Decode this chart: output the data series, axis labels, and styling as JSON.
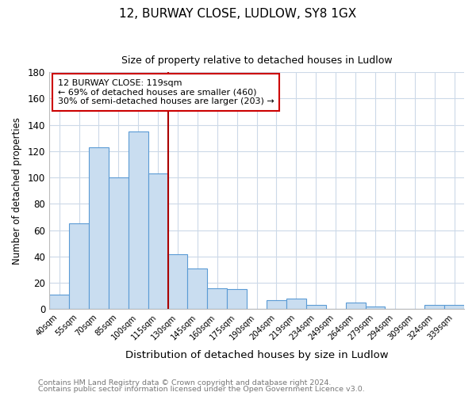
{
  "title": "12, BURWAY CLOSE, LUDLOW, SY8 1GX",
  "subtitle": "Size of property relative to detached houses in Ludlow",
  "xlabel": "Distribution of detached houses by size in Ludlow",
  "ylabel": "Number of detached properties",
  "bar_labels": [
    "40sqm",
    "55sqm",
    "70sqm",
    "85sqm",
    "100sqm",
    "115sqm",
    "130sqm",
    "145sqm",
    "160sqm",
    "175sqm",
    "190sqm",
    "204sqm",
    "219sqm",
    "234sqm",
    "249sqm",
    "264sqm",
    "279sqm",
    "294sqm",
    "309sqm",
    "324sqm",
    "339sqm"
  ],
  "bar_values": [
    11,
    65,
    123,
    100,
    135,
    103,
    42,
    31,
    16,
    15,
    0,
    7,
    8,
    3,
    0,
    5,
    2,
    0,
    0,
    3,
    3
  ],
  "bar_color": "#c9ddf0",
  "bar_edge_color": "#5b9bd5",
  "vline_x": 5.5,
  "vline_color": "#aa0000",
  "annotation_lines": [
    "12 BURWAY CLOSE: 119sqm",
    "← 69% of detached houses are smaller (460)",
    "30% of semi-detached houses are larger (203) →"
  ],
  "annotation_box_color": "#ffffff",
  "annotation_box_edge": "#cc0000",
  "ylim": [
    0,
    180
  ],
  "yticks": [
    0,
    20,
    40,
    60,
    80,
    100,
    120,
    140,
    160,
    180
  ],
  "footer_line1": "Contains HM Land Registry data © Crown copyright and database right 2024.",
  "footer_line2": "Contains public sector information licensed under the Open Government Licence v3.0.",
  "background_color": "#ffffff",
  "grid_color": "#ccd9e8"
}
